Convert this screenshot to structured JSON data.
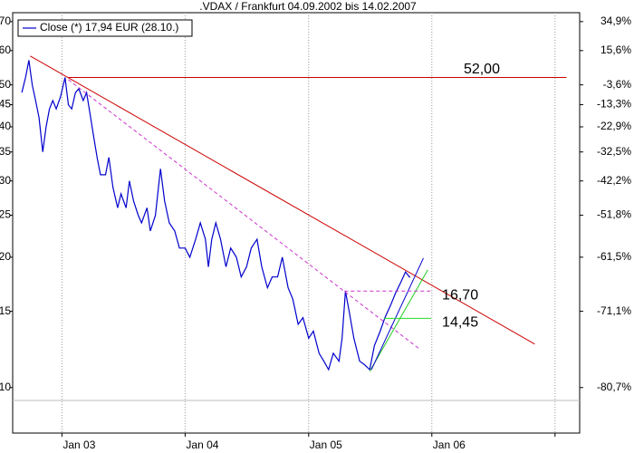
{
  "chart_data": {
    "type": "line",
    "title": ".VDAX / Frankfurt 04.09.2002 bis 14.02.2007",
    "log_scale": true,
    "xgrid": true,
    "legend": "upper left",
    "series": [
      {
        "name": "Close (*) 17,94 EUR (28.10.)",
        "color": "#0000cc",
        "x": [
          "2002-09-04",
          "2002-09-15",
          "2002-09-25",
          "2002-10-05",
          "2002-10-15",
          "2002-10-25",
          "2002-11-05",
          "2002-11-15",
          "2002-11-25",
          "2002-12-05",
          "2002-12-15",
          "2002-12-28",
          "2003-01-10",
          "2003-01-20",
          "2003-01-30",
          "2003-02-10",
          "2003-02-20",
          "2003-03-05",
          "2003-03-15",
          "2003-03-25",
          "2003-04-05",
          "2003-04-15",
          "2003-04-25",
          "2003-05-10",
          "2003-05-20",
          "2003-06-01",
          "2003-06-15",
          "2003-06-25",
          "2003-07-10",
          "2003-07-20",
          "2003-08-01",
          "2003-08-15",
          "2003-08-25",
          "2003-09-10",
          "2003-09-20",
          "2003-10-05",
          "2003-10-20",
          "2003-11-01",
          "2003-11-15",
          "2003-12-01",
          "2003-12-15",
          "2004-01-01",
          "2004-01-15",
          "2004-02-01",
          "2004-02-15",
          "2004-03-01",
          "2004-03-10",
          "2004-03-20",
          "2004-04-01",
          "2004-04-15",
          "2004-05-01",
          "2004-05-15",
          "2004-06-01",
          "2004-06-15",
          "2004-07-01",
          "2004-07-15",
          "2004-08-01",
          "2004-08-15",
          "2004-09-01",
          "2004-09-15",
          "2004-10-01",
          "2004-10-15",
          "2004-11-01",
          "2004-11-15",
          "2004-12-01",
          "2004-12-15",
          "2005-01-01",
          "2005-01-15",
          "2005-02-01",
          "2005-02-15",
          "2005-03-01",
          "2005-03-15",
          "2005-04-01",
          "2005-04-10",
          "2005-04-20",
          "2005-05-01",
          "2005-05-15",
          "2005-06-01",
          "2005-06-15",
          "2005-07-01",
          "2005-07-15",
          "2005-08-01",
          "2005-08-15",
          "2005-09-01",
          "2005-09-15",
          "2005-10-01",
          "2005-10-15",
          "2005-10-28"
        ],
        "values": [
          48,
          52,
          57,
          50,
          46,
          42,
          35,
          40,
          44,
          46,
          44,
          47,
          52,
          45,
          44,
          48,
          49,
          46,
          48,
          43,
          38,
          34,
          31,
          31,
          34,
          29,
          26,
          28,
          26,
          30,
          27,
          25,
          24,
          26,
          23,
          25,
          32,
          27,
          24,
          23,
          21,
          21,
          20,
          22,
          24,
          22,
          19,
          22,
          24,
          22,
          19,
          21,
          20,
          18,
          19,
          21,
          22,
          19,
          17,
          18,
          18,
          20,
          17,
          16,
          14,
          14.5,
          13,
          13.5,
          12,
          11.5,
          11,
          12,
          11.5,
          13,
          16.7,
          15,
          13,
          11.5,
          11.3,
          11,
          12.5,
          13.5,
          14.5,
          15.5,
          16.5,
          17.5,
          18.5,
          17.94
        ]
      }
    ],
    "xlim": [
      "2002-08-08",
      "2007-03-15"
    ],
    "xticks": [
      {
        "value": "2003-01-01",
        "label": "Jan 03"
      },
      {
        "value": "2004-01-01",
        "label": "Jan 04"
      },
      {
        "value": "2005-01-01",
        "label": "Jan 05"
      },
      {
        "value": "2006-01-01",
        "label": "Jan 06"
      },
      {
        "value": "2007-01-01",
        "label": null
      }
    ],
    "ylim": [
      7.85,
      73.4
    ],
    "yticks": [
      70,
      60,
      50,
      45,
      40,
      35,
      30,
      25,
      20,
      15,
      10
    ],
    "y2lim": [
      7.85,
      73.4
    ],
    "y2ticks": [
      {
        "value": 70,
        "label": "34,9%"
      },
      {
        "value": 60,
        "label": "15,6%"
      },
      {
        "value": 50,
        "label": "-3,6%"
      },
      {
        "value": 45,
        "label": "-13,3%"
      },
      {
        "value": 40,
        "label": "-22,9%"
      },
      {
        "value": 35,
        "label": "-32,5%"
      },
      {
        "value": 30,
        "label": "-42,2%"
      },
      {
        "value": 25,
        "label": "-51,8%"
      },
      {
        "value": 20,
        "label": "-61,5%"
      },
      {
        "value": 15,
        "label": "-71,1%"
      },
      {
        "value": 10,
        "label": "-80,7%"
      }
    ],
    "hlines": [
      {
        "value": 52,
        "label": "52,00",
        "color": "#ee0000",
        "line_color": "#cc0000",
        "dashed": false,
        "x": [
          "2003-01-20",
          "2007-02-04"
        ]
      },
      {
        "value": 16.7,
        "label": "16,70",
        "color": "#0000cc",
        "line_color": "#cc33cc",
        "dashed": true,
        "x": [
          "2005-04-17",
          "2005-12-30"
        ]
      },
      {
        "value": 14.45,
        "label": "14,45",
        "color": "#22dd22",
        "line_color": "#22dd22",
        "dashed": false,
        "x": [
          "2005-08-12",
          "2005-12-30"
        ]
      }
    ],
    "trendlines": [
      {
        "color": "#cc0000",
        "dashed": false,
        "x": [
          "2002-09-29",
          "2006-11-02"
        ],
        "values": [
          58.3,
          12.6
        ]
      },
      {
        "color": "#cc33cc",
        "dashed": true,
        "x": [
          "2003-01-20",
          "2005-11-24"
        ],
        "values": [
          51.4,
          12.3
        ]
      },
      {
        "color": "#22cc22",
        "dashed": false,
        "x": [
          "2005-07-01",
          "2005-12-20"
        ],
        "values": [
          10.9,
          18.7
        ]
      },
      {
        "color": "#0000cc",
        "dashed": false,
        "x": [
          "2005-07-06",
          "2005-12-07"
        ],
        "values": [
          11.0,
          19.9
        ]
      }
    ]
  }
}
